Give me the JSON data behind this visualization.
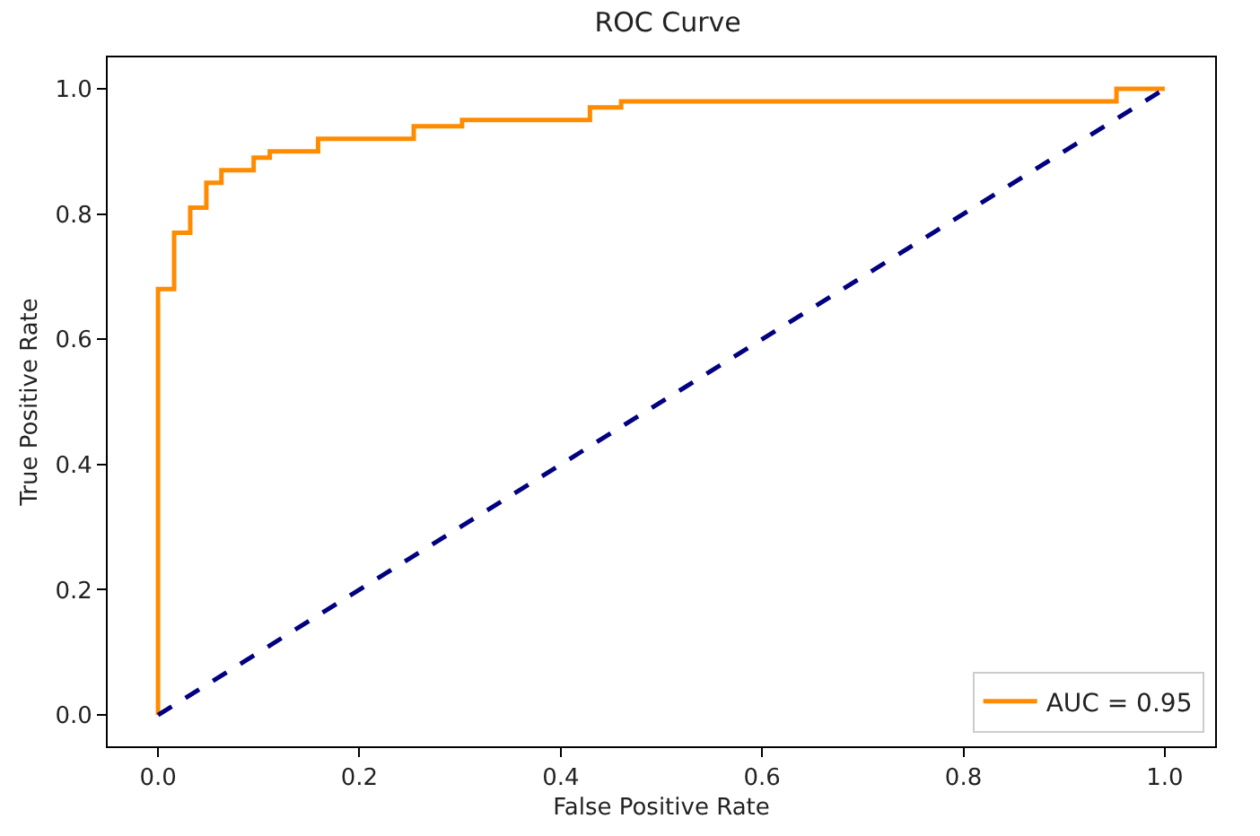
{
  "chart_data": {
    "type": "step",
    "title": "ROC Curve",
    "xlabel": "False Positive Rate",
    "ylabel": "True Positive Rate",
    "series": [
      {
        "name": "AUC = 0.95",
        "color": "#ff8c00",
        "x": [
          0,
          0,
          0.016,
          0.032,
          0.048,
          0.063,
          0.095,
          0.111,
          0.159,
          0.254,
          0.302,
          0.429,
          0.46,
          0.952,
          1.0
        ],
        "values": [
          0,
          0.68,
          0.77,
          0.81,
          0.85,
          0.87,
          0.89,
          0.9,
          0.92,
          0.94,
          0.95,
          0.97,
          0.98,
          1.0,
          1.0
        ]
      },
      {
        "color": "#000080",
        "type": "line",
        "line_style": "dashed",
        "x": [
          0,
          1
        ],
        "values": [
          0,
          1
        ]
      }
    ],
    "xlim": [
      -0.05,
      1.05
    ],
    "ylim": [
      -0.05,
      1.05
    ],
    "xticks": [
      {
        "value": 0,
        "label": "0.0"
      },
      {
        "value": 0.2,
        "label": "0.2"
      },
      {
        "value": 0.4,
        "label": "0.4"
      },
      {
        "value": 0.6,
        "label": "0.6"
      },
      {
        "value": 0.8,
        "label": "0.8"
      },
      {
        "value": 1,
        "label": "1.0"
      }
    ],
    "yticks": [
      {
        "value": 0,
        "label": "0.0"
      },
      {
        "value": 0.2,
        "label": "0.2"
      },
      {
        "value": 0.4,
        "label": "0.4"
      },
      {
        "value": 0.6,
        "label": "0.6"
      },
      {
        "value": 0.8,
        "label": "0.8"
      },
      {
        "value": 1,
        "label": "1.0"
      }
    ],
    "legend": "bottom right"
  }
}
